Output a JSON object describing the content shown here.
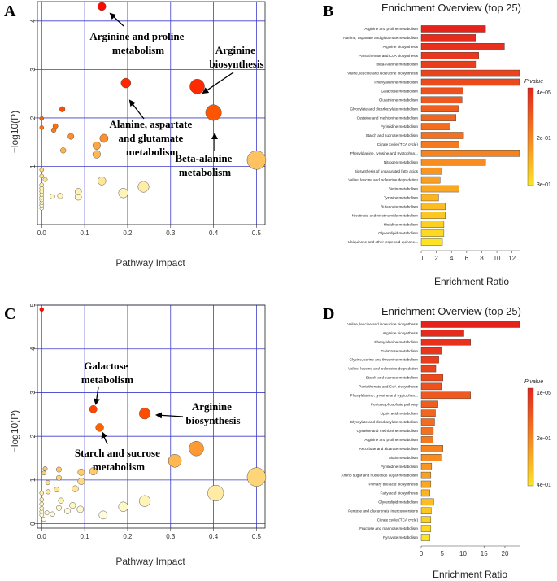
{
  "chart_data": [
    {
      "type": "scatter",
      "panel_label": "A",
      "xlabel": "Pathway Impact",
      "ylabel": "−log10(P)",
      "xlim": [
        -0.01,
        0.52
      ],
      "ylim": [
        -0.2,
        4.4
      ],
      "xticks": [
        "0.0",
        "0.1",
        "0.2",
        "0.3",
        "0.4",
        "0.5"
      ],
      "yticks": [
        "1",
        "2",
        "3",
        "4"
      ],
      "points": [
        {
          "x": 0.14,
          "y": 4.3
        },
        {
          "x": 0.196,
          "y": 2.72
        },
        {
          "x": 0.362,
          "y": 2.65
        },
        {
          "x": 0.4,
          "y": 2.11
        },
        {
          "x": 0.5,
          "y": 1.13
        },
        {
          "x": 0.0,
          "y": 1.99
        },
        {
          "x": 0.0,
          "y": 1.8
        },
        {
          "x": 0.048,
          "y": 2.18
        },
        {
          "x": 0.032,
          "y": 1.83
        },
        {
          "x": 0.028,
          "y": 1.75
        },
        {
          "x": 0.068,
          "y": 1.62
        },
        {
          "x": 0.128,
          "y": 1.43
        },
        {
          "x": 0.145,
          "y": 1.58
        },
        {
          "x": 0.128,
          "y": 1.25
        },
        {
          "x": 0.05,
          "y": 1.33
        },
        {
          "x": 0.0,
          "y": 0.93
        },
        {
          "x": 0.0,
          "y": 0.8
        },
        {
          "x": 0.008,
          "y": 0.73
        },
        {
          "x": 0.0,
          "y": 0.62
        },
        {
          "x": 0.0,
          "y": 0.55
        },
        {
          "x": 0.0,
          "y": 0.48
        },
        {
          "x": 0.0,
          "y": 0.42
        },
        {
          "x": 0.0,
          "y": 0.36
        },
        {
          "x": 0.0,
          "y": 0.31
        },
        {
          "x": 0.0,
          "y": 0.25
        },
        {
          "x": 0.0,
          "y": 0.2
        },
        {
          "x": 0.0,
          "y": 0.14
        },
        {
          "x": 0.025,
          "y": 0.38
        },
        {
          "x": 0.043,
          "y": 0.39
        },
        {
          "x": 0.085,
          "y": 0.48
        },
        {
          "x": 0.085,
          "y": 0.37
        },
        {
          "x": 0.14,
          "y": 0.7
        },
        {
          "x": 0.19,
          "y": 0.45
        },
        {
          "x": 0.237,
          "y": 0.58
        }
      ],
      "annotations": [
        {
          "text": [
            "Arginine and proline",
            "metabolism"
          ]
        },
        {
          "text": [
            "Arginine",
            "biosynthesis"
          ]
        },
        {
          "text": [
            "Alanine, aspartate",
            "and glutamate",
            "metabolism"
          ]
        },
        {
          "text": [
            "Beta-alanine",
            "metabolism"
          ]
        }
      ]
    },
    {
      "type": "bar",
      "panel_label": "B",
      "title": "Enrichment Overview (top 25)",
      "xlabel": "Enrichment Ratio",
      "xlim": [
        0,
        13
      ],
      "xticks": [
        "0",
        "2",
        "4",
        "6",
        "8",
        "10",
        "12"
      ],
      "legend_title": "P value",
      "legend_labels": [
        "4e-05",
        "2e-01",
        "3e-01"
      ],
      "categories": [
        "Arginine and proline metabolism",
        "Alanine, aspartate and glutamate metabolism",
        "Arginine biosynthesis",
        "Pantothenate and CoA biosynthesis",
        "beta-Alanine metabolism",
        "Valine, leucine and isoleucine biosynthesis",
        "Phenylalanine metabolism",
        "Galactose metabolism",
        "Glutathione metabolism",
        "Glyoxylate and dicarboxylate metabolism",
        "Cysteine and methionine metabolism",
        "Pyrimidine metabolism",
        "Starch and sucrose metabolism",
        "Citrate cycle (TCA cycle)",
        "Phenylalanine, tyrosine and tryptophan...",
        "Nitrogen metabolism",
        "Biosynthesis of unsaturated fatty acids",
        "Valine, leucine and isoleucine degradation",
        "Biotin metabolism",
        "Tyrosine metabolism",
        "Butanoate metabolism",
        "Nicotinate and nicotinamide metabolism",
        "Histidine metabolism",
        "Glycerolipid metabolism",
        "Ubiquinone and other terpenoid-quinone..."
      ],
      "values": [
        8.5,
        7.2,
        11.0,
        7.6,
        7.3,
        13.0,
        13.0,
        5.5,
        5.4,
        4.9,
        4.6,
        3.8,
        5.6,
        5.0,
        13.0,
        8.5,
        2.7,
        2.5,
        5.0,
        2.3,
        3.2,
        3.2,
        3.0,
        3.0,
        2.8
      ],
      "colors": [
        "#e5231b",
        "#e62a1b",
        "#e8301c",
        "#e9361c",
        "#ea3d1c",
        "#eb441d",
        "#ec4a1d",
        "#ee511d",
        "#ef581e",
        "#f05e1e",
        "#f2651e",
        "#f36c1f",
        "#f4721f",
        "#f5791f",
        "#f58320",
        "#f78c20",
        "#f89620",
        "#f99f21",
        "#faa821",
        "#fbb322",
        "#fbbd22",
        "#fcc722",
        "#fcd023",
        "#fdd923",
        "#fde324"
      ]
    },
    {
      "type": "scatter",
      "panel_label": "C",
      "xlabel": "Pathway Impact",
      "ylabel": "−log10(P)",
      "xlim": [
        -0.01,
        0.52
      ],
      "ylim": [
        -0.1,
        5.0
      ],
      "xticks": [
        "0.0",
        "0.1",
        "0.2",
        "0.3",
        "0.4",
        "0.5"
      ],
      "yticks": [
        "0",
        "1",
        "2",
        "3",
        "4",
        "5"
      ],
      "points": [
        {
          "x": 0.0,
          "y": 4.9
        },
        {
          "x": 0.12,
          "y": 2.62
        },
        {
          "x": 0.24,
          "y": 2.52
        },
        {
          "x": 0.135,
          "y": 2.2
        },
        {
          "x": 0.36,
          "y": 1.72
        },
        {
          "x": 0.31,
          "y": 1.44
        },
        {
          "x": 0.5,
          "y": 1.07
        },
        {
          "x": 0.405,
          "y": 0.7
        },
        {
          "x": 0.008,
          "y": 1.26
        },
        {
          "x": 0.005,
          "y": 1.16
        },
        {
          "x": 0.04,
          "y": 1.24
        },
        {
          "x": 0.092,
          "y": 1.18
        },
        {
          "x": 0.12,
          "y": 1.2
        },
        {
          "x": 0.092,
          "y": 0.97
        },
        {
          "x": 0.078,
          "y": 0.8
        },
        {
          "x": 0.014,
          "y": 0.94
        },
        {
          "x": 0.04,
          "y": 1.05
        },
        {
          "x": 0.0,
          "y": 0.7
        },
        {
          "x": 0.015,
          "y": 0.73
        },
        {
          "x": 0.035,
          "y": 0.78
        },
        {
          "x": 0.045,
          "y": 0.53
        },
        {
          "x": 0.0,
          "y": 0.55
        },
        {
          "x": 0.0,
          "y": 0.45
        },
        {
          "x": 0.0,
          "y": 0.35
        },
        {
          "x": 0.0,
          "y": 0.28
        },
        {
          "x": 0.0,
          "y": 0.2
        },
        {
          "x": 0.005,
          "y": 0.1
        },
        {
          "x": 0.012,
          "y": 0.25
        },
        {
          "x": 0.025,
          "y": 0.22
        },
        {
          "x": 0.04,
          "y": 0.36
        },
        {
          "x": 0.06,
          "y": 0.29
        },
        {
          "x": 0.072,
          "y": 0.42
        },
        {
          "x": 0.09,
          "y": 0.33
        },
        {
          "x": 0.143,
          "y": 0.2
        },
        {
          "x": 0.19,
          "y": 0.39
        },
        {
          "x": 0.24,
          "y": 0.52
        }
      ],
      "annotations": [
        {
          "text": [
            "Galactose",
            "metabolism"
          ]
        },
        {
          "text": [
            "Arginine",
            "biosynthesis"
          ]
        },
        {
          "text": [
            "Starch and sucrose",
            "metabolism"
          ]
        }
      ]
    },
    {
      "type": "bar",
      "panel_label": "D",
      "title": "Enrichment Overview (top 25)",
      "xlabel": "Enrichment Ratio",
      "xlim": [
        0,
        23.5
      ],
      "xticks": [
        "0",
        "5",
        "10",
        "15",
        "20"
      ],
      "legend_title": "P value",
      "legend_labels": [
        "1e-05",
        "2e-01",
        "4e-01"
      ],
      "categories": [
        "Valine, leucine and isoleucine biosynthesis",
        "Arginine biosynthesis",
        "Phenylalanine metabolism",
        "Galactose metabolism",
        "Glycine, serine and threonine metabolism",
        "Valine, leucine and isoleucine degradation",
        "Starch and sucrose metabolism",
        "Pantothenate and CoA biosynthesis",
        "Phenylalanine, tyrosine and tryptophan...",
        "Pentose phosphate pathway",
        "Lipoic acid metabolism",
        "Glyoxylate and dicarboxylate metabolism",
        "Cysteine and methionine metabolism",
        "Arginine and proline metabolism",
        "Ascorbate and aldarate metabolism",
        "Biotin metabolism",
        "Pyrimidine metabolism",
        "Amino sugar and nucleotide sugar metabolism",
        "Primary bile acid biosynthesis",
        "Fatty acid biosynthesis",
        "Glycerolipid metabolism",
        "Pentose and glucuronate interconversions",
        "Citrate cycle (TCA cycle)",
        "Fructose and mannose metabolism",
        "Pyruvate metabolism"
      ],
      "values": [
        23.5,
        10.2,
        11.8,
        5.0,
        4.2,
        3.5,
        5.2,
        4.8,
        11.8,
        4.0,
        3.4,
        3.2,
        2.9,
        2.8,
        5.2,
        4.7,
        2.5,
        2.3,
        2.3,
        2.1,
        3.0,
        2.4,
        2.3,
        2.3,
        2.1
      ],
      "colors": [
        "#e5231b",
        "#e62a1b",
        "#e8301c",
        "#e9361c",
        "#ea3d1c",
        "#eb441d",
        "#ec4a1d",
        "#ee511d",
        "#ef581e",
        "#f05e1e",
        "#f2651e",
        "#f36c1f",
        "#f4721f",
        "#f5791f",
        "#f58320",
        "#f78c20",
        "#f89620",
        "#f99f21",
        "#faa821",
        "#fbb322",
        "#fbbd22",
        "#fcc722",
        "#fcd023",
        "#fdd923",
        "#fde324"
      ]
    }
  ]
}
